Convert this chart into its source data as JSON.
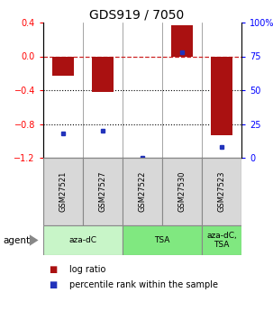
{
  "title": "GDS919 / 7050",
  "samples": [
    "GSM27521",
    "GSM27527",
    "GSM27522",
    "GSM27530",
    "GSM27523"
  ],
  "log_ratios": [
    -0.23,
    -0.42,
    0.0,
    0.37,
    -0.93
  ],
  "percentile_ranks": [
    18,
    20,
    0,
    78,
    8
  ],
  "agents": [
    {
      "label": "aza-dC",
      "span": [
        0,
        2
      ],
      "color": "#c8f5c8"
    },
    {
      "label": "TSA",
      "span": [
        2,
        4
      ],
      "color": "#80e880"
    },
    {
      "label": "aza-dC,\nTSA",
      "span": [
        4,
        5
      ],
      "color": "#80e880"
    }
  ],
  "ylim_left": [
    -1.2,
    0.4
  ],
  "ylim_right": [
    0,
    100
  ],
  "right_ticks": [
    0,
    25,
    50,
    75,
    100
  ],
  "right_tick_labels": [
    "0",
    "25",
    "50",
    "75",
    "100%"
  ],
  "left_ticks": [
    -1.2,
    -0.8,
    -0.4,
    0.0,
    0.4
  ],
  "bar_color": "#aa1111",
  "dot_color": "#2233bb",
  "zero_line_color": "#cc2222",
  "bg_color": "#d8d8d8",
  "n_samples": 5
}
